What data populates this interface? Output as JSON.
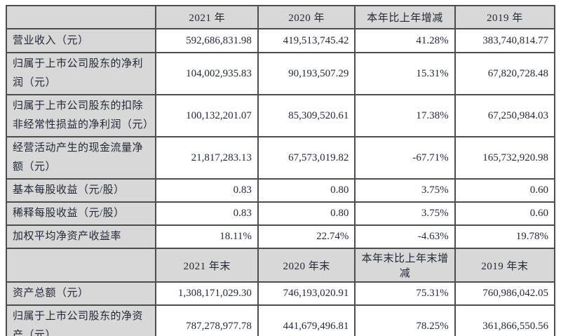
{
  "colors": {
    "header_bg": "#d8d8d8",
    "border": "#4d4d4d",
    "text": "#232938",
    "page_bg": "#ffffff"
  },
  "table": {
    "rows": [
      {
        "type": "header",
        "label": "",
        "c1": "2021 年",
        "c2": "2020 年",
        "c3": "本年比上年增减",
        "c4": "2019 年"
      },
      {
        "type": "data",
        "label": "营业收入（元）",
        "c1": "592,686,831.98",
        "c2": "419,513,745.42",
        "c3": "41.28%",
        "c4": "383,740,814.77"
      },
      {
        "type": "data",
        "label": "归属于上市公司股东的净利润（元）",
        "c1": "104,002,935.83",
        "c2": "90,193,507.29",
        "c3": "15.31%",
        "c4": "67,820,728.48"
      },
      {
        "type": "data",
        "label": "归属于上市公司股东的扣除非经常性损益的净利润（元）",
        "c1": "100,132,201.07",
        "c2": "85,309,520.61",
        "c3": "17.38%",
        "c4": "67,250,984.03"
      },
      {
        "type": "data",
        "label": "经营活动产生的现金流量净额（元）",
        "c1": "21,817,283.13",
        "c2": "67,573,019.82",
        "c3": "-67.71%",
        "c4": "165,732,920.98"
      },
      {
        "type": "data",
        "label": "基本每股收益（元/股）",
        "c1": "0.83",
        "c2": "0.80",
        "c3": "3.75%",
        "c4": "0.60"
      },
      {
        "type": "data",
        "label": "稀释每股收益（元/股）",
        "c1": "0.83",
        "c2": "0.80",
        "c3": "3.75%",
        "c4": "0.60"
      },
      {
        "type": "data",
        "label": "加权平均净资产收益率",
        "c1": "18.11%",
        "c2": "22.74%",
        "c3": "-4.63%",
        "c4": "19.78%"
      },
      {
        "type": "header",
        "label": "",
        "c1": "2021 年末",
        "c2": "2020 年末",
        "c3": "本年末比上年末增减",
        "c4": "2019 年末"
      },
      {
        "type": "data",
        "label": "资产总额（元）",
        "c1": "1,308,171,029.30",
        "c2": "746,193,020.91",
        "c3": "75.31%",
        "c4": "760,986,042.05"
      },
      {
        "type": "data",
        "label": "归属于上市公司股东的净资产（元）",
        "c1": "787,278,977.78",
        "c2": "441,679,496.81",
        "c3": "78.25%",
        "c4": "361,866,550.56"
      }
    ]
  }
}
